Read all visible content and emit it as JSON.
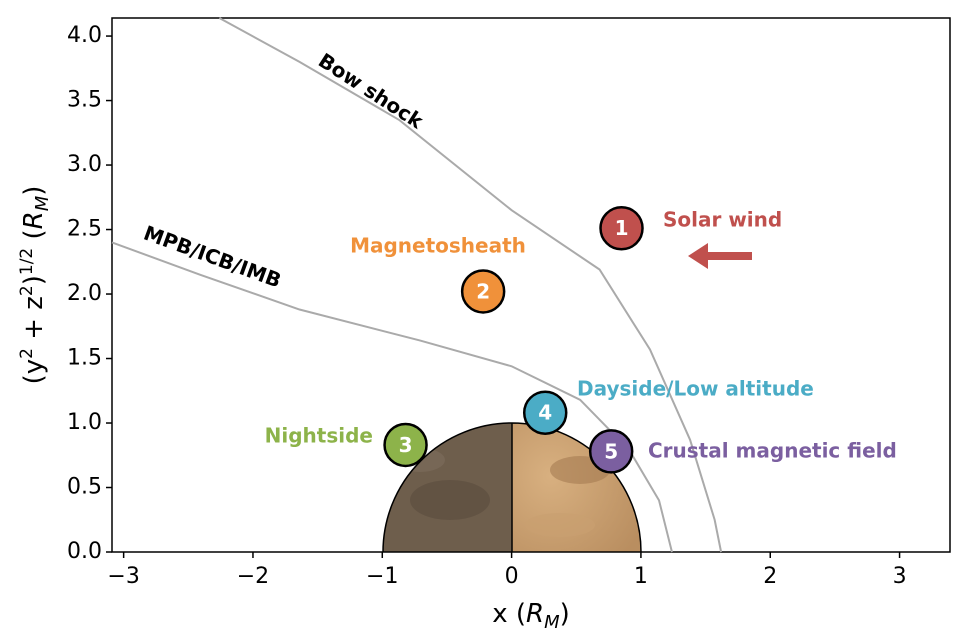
{
  "chart_data": {
    "type": "scatter",
    "xlabel": [
      "x (",
      "R",
      "M",
      ")"
    ],
    "ylabel": [
      "(y",
      "2",
      " + z",
      "2",
      ")",
      "1/2",
      " (",
      "R",
      "M",
      ")"
    ],
    "xlim": [
      -3.09,
      3.39
    ],
    "ylim": [
      0,
      4.14
    ],
    "xticks": [
      {
        "value": -3,
        "label": "−3"
      },
      {
        "value": -2,
        "label": "−2"
      },
      {
        "value": -1,
        "label": "−1"
      },
      0,
      1,
      2,
      3
    ],
    "yticks": [
      {
        "value": 0,
        "label": "0.0"
      },
      0.5,
      {
        "value": 1,
        "label": "1.0"
      },
      1.5,
      {
        "value": 2,
        "label": "2.0"
      },
      2.5,
      {
        "value": 3,
        "label": "3.0"
      },
      3.5,
      {
        "value": 4,
        "label": "4.0"
      }
    ],
    "curves": [
      {
        "name": "Bow shock",
        "color": "#aaaaaa",
        "x": [
          -2.26,
          -1.64,
          -0.87,
          0,
          0.68,
          1.07,
          1.38,
          1.57,
          1.62
        ],
        "y": [
          4.14,
          3.8,
          3.35,
          2.65,
          2.19,
          1.57,
          0.87,
          0.25,
          0
        ]
      },
      {
        "name": "MPB/ICB/IMB",
        "color": "#aaaaaa",
        "x": [
          -3.09,
          -2.41,
          -1.64,
          -0.71,
          0,
          0.53,
          0.91,
          1.14,
          1.24
        ],
        "y": [
          2.4,
          2.15,
          1.88,
          1.64,
          1.44,
          1.18,
          0.79,
          0.4,
          0
        ]
      }
    ],
    "markers": [
      {
        "label": "1",
        "name": "Solar wind",
        "color": "#c0504d",
        "x": 0.85,
        "y": 2.51
      },
      {
        "label": "2",
        "name": "Magnetosheath",
        "color": "#f0913a",
        "x": -0.22,
        "y": 2.02
      },
      {
        "label": "3",
        "name": "Nightside",
        "color": "#8db34a",
        "x": -0.82,
        "y": 0.83
      },
      {
        "label": "4",
        "name": "Dayside/Low altitude",
        "color": "#4bacc6",
        "x": 0.26,
        "y": 1.08
      },
      {
        "label": "5",
        "name": "Crustal magnetic field",
        "color": "#7b5fa0",
        "x": 0.77,
        "y": 0.78
      }
    ]
  }
}
